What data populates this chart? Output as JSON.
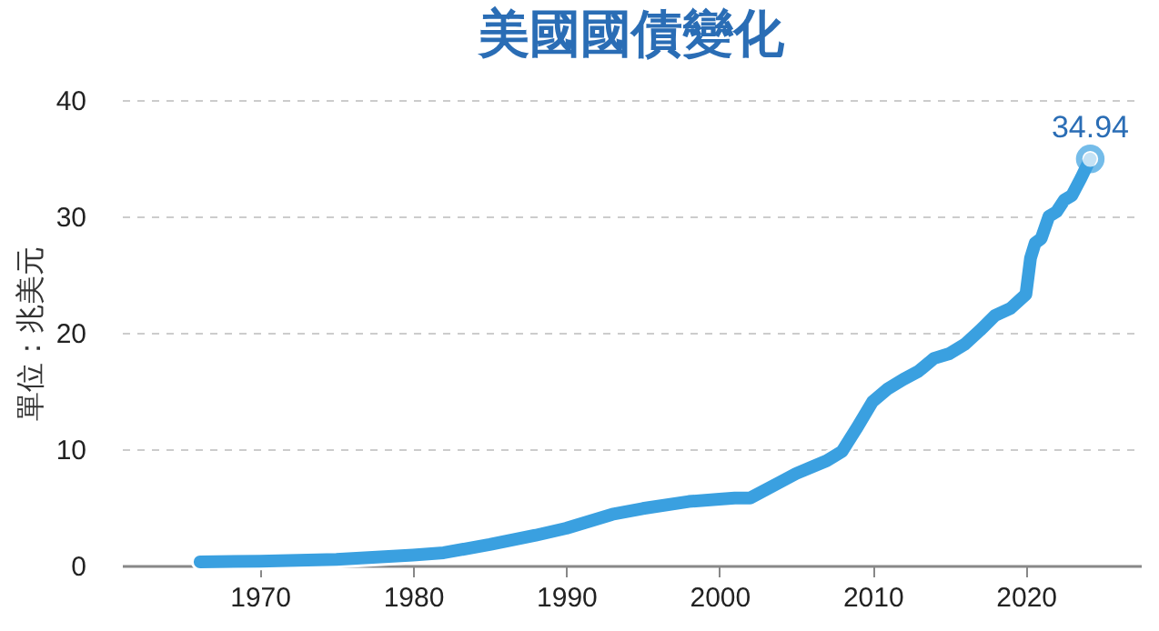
{
  "chart_data": {
    "type": "line",
    "title": "美國國債變化",
    "ylabel": "單位：兆美元",
    "x": [
      1966.1,
      1970,
      1975,
      1980,
      1982,
      1985,
      1988,
      1990,
      1993,
      1995,
      1998,
      2000,
      2001,
      2002,
      2004,
      2005,
      2007,
      2008,
      2009,
      2010,
      2011,
      2012,
      2013,
      2014,
      2015,
      2016,
      2017,
      2018,
      2019,
      2020,
      2020.3,
      2020.6,
      2021,
      2021.5,
      2022,
      2022.5,
      2023,
      2023.6,
      2024.2
    ],
    "series": [
      {
        "color": "#3aa0e0",
        "values": [
          0.32,
          0.37,
          0.53,
          0.9,
          1.1,
          1.8,
          2.6,
          3.2,
          4.4,
          4.9,
          5.5,
          5.7,
          5.8,
          5.8,
          7.2,
          7.9,
          9.0,
          9.8,
          11.9,
          14.1,
          15.2,
          16.0,
          16.7,
          17.8,
          18.2,
          19.0,
          20.2,
          21.5,
          22.1,
          23.3,
          26.4,
          27.7,
          28.1,
          30.0,
          30.4,
          31.4,
          31.8,
          33.3,
          34.94
        ]
      }
    ],
    "annotations": [
      {
        "text": "34.94",
        "x": 2024.2,
        "y": 34.94
      }
    ],
    "xlim": [
      1961,
      2027.5
    ],
    "xticks": [
      1970,
      1980,
      1990,
      2000,
      2010,
      2020
    ],
    "ylim": [
      0,
      40
    ],
    "yticks": [
      0,
      10,
      20,
      30,
      40
    ],
    "grid": "y",
    "marker": "none",
    "line_style": "solid"
  }
}
